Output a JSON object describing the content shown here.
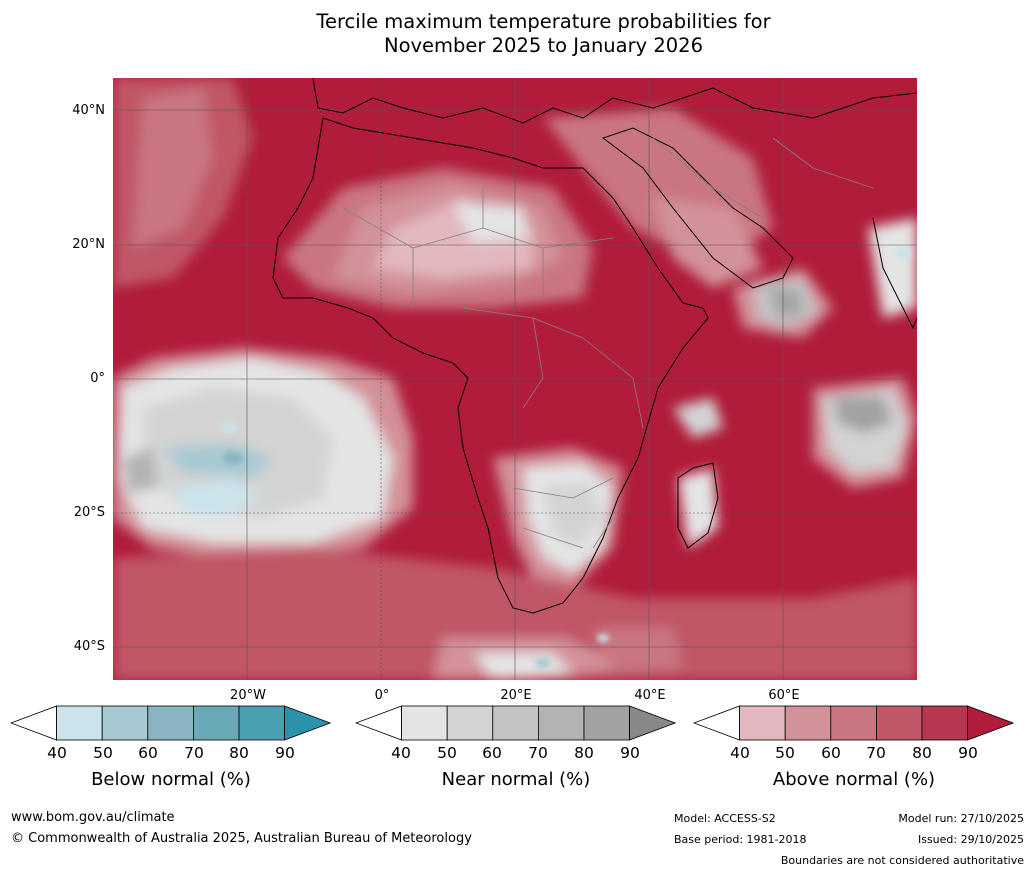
{
  "title": {
    "line1": "Tercile maximum temperature probabilities for",
    "line2": "November 2025 to January 2026"
  },
  "map": {
    "lat_labels": [
      "40°N",
      "20°N",
      "0°",
      "20°S",
      "40°S"
    ],
    "lon_labels": [
      "20°W",
      "0°",
      "20°E",
      "40°E",
      "60°E"
    ]
  },
  "colorbars": [
    {
      "label": "Below normal (%)",
      "ticks": [
        "40",
        "50",
        "60",
        "70",
        "80",
        "90"
      ],
      "colors": [
        "#cbe3ea",
        "#a7c9d1",
        "#88b5c1",
        "#6aa9b8",
        "#4aa0b1"
      ],
      "extend_color": "#2a93ab"
    },
    {
      "label": "Near normal (%)",
      "ticks": [
        "40",
        "50",
        "60",
        "70",
        "80",
        "90"
      ],
      "colors": [
        "#e4e4e4",
        "#d3d3d3",
        "#c4c4c4",
        "#b3b3b3",
        "#a2a2a2"
      ],
      "extend_color": "#888888"
    },
    {
      "label": "Above normal (%)",
      "ticks": [
        "40",
        "50",
        "60",
        "70",
        "80",
        "90"
      ],
      "colors": [
        "#e2b7bd",
        "#d3919a",
        "#c97680",
        "#c05766",
        "#b73750"
      ],
      "extend_color": "#b01c3a"
    }
  ],
  "footer": {
    "url": "www.bom.gov.au/climate",
    "copyright": "© Commonwealth of Australia 2025, Australian Bureau of Meteorology",
    "model": "Model: ACCESS-S2",
    "base_period": "Base period: 1981-2018",
    "model_run": "Model run: 27/10/2025",
    "issued": "Issued: 29/10/2025",
    "disclaimer": "Boundaries are not considered authoritative"
  }
}
